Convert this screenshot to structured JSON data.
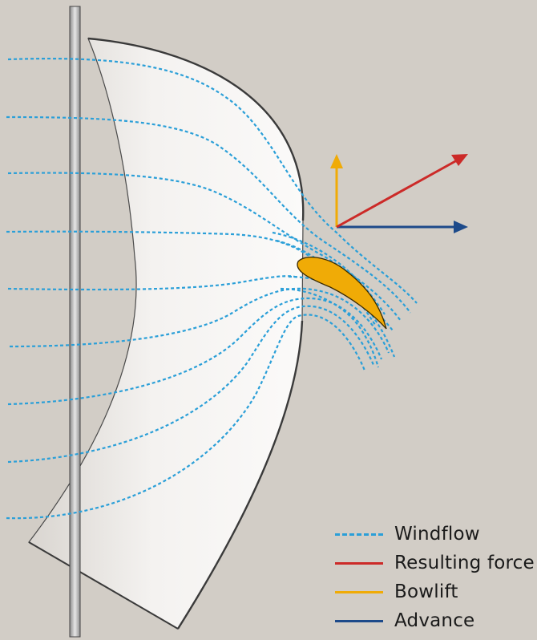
{
  "colors": {
    "background": "#d2cdc6",
    "windflow": "#2a9fd8",
    "resulting_force": "#cc2a28",
    "bowlift": "#f0ab06",
    "advance": "#1d4a8a"
  },
  "legend": [
    {
      "key": "windflow",
      "label": "Windflow",
      "style": "dashed"
    },
    {
      "key": "resulting_force",
      "label": "Resulting force",
      "style": "solid"
    },
    {
      "key": "bowlift",
      "label": "Bowlift",
      "style": "solid"
    },
    {
      "key": "advance",
      "label": "Advance",
      "style": "solid"
    }
  ]
}
